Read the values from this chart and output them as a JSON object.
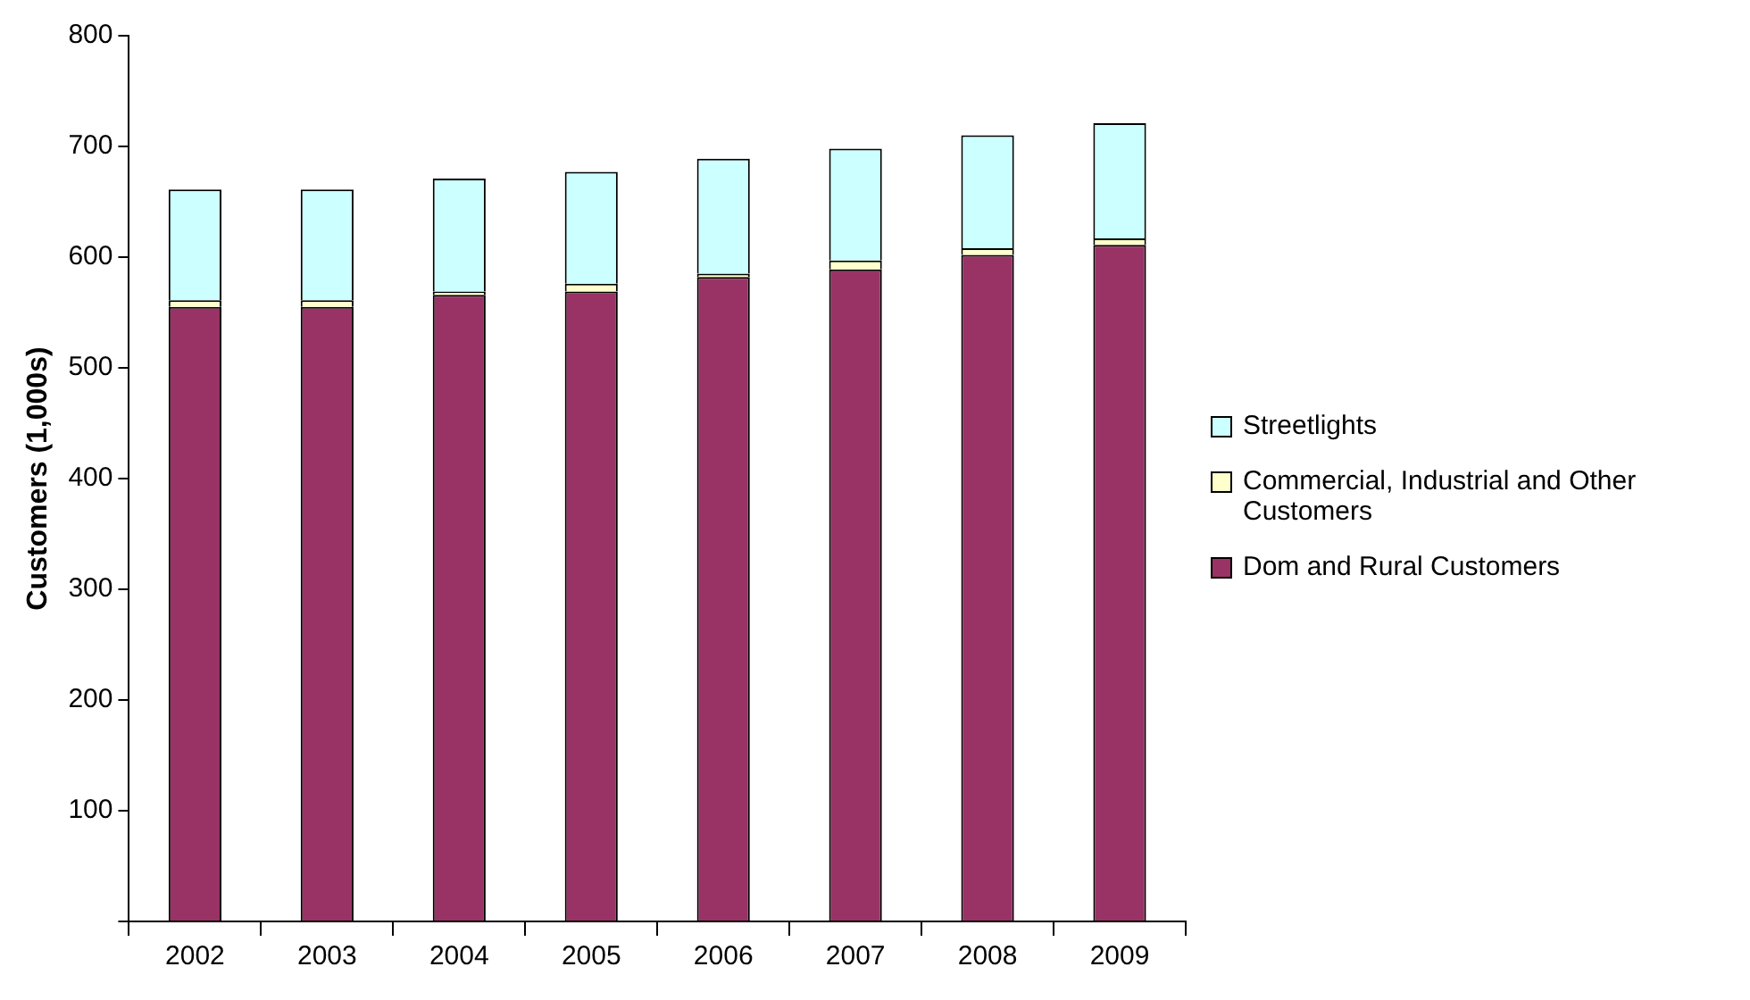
{
  "chart_data": {
    "type": "bar",
    "ylabel": "Customers (1,000s)",
    "categories": [
      "2002",
      "2003",
      "2004",
      "2005",
      "2006",
      "2007",
      "2008",
      "2009"
    ],
    "stacked": true,
    "series": [
      {
        "name": "Dom and Rural Customers",
        "color": "#993366",
        "values": [
          555,
          555,
          566,
          569,
          582,
          589,
          602,
          611
        ]
      },
      {
        "name": "Commercial, Industrial and Other Customers",
        "color": "#ffffcc",
        "values": [
          6,
          6,
          3,
          7,
          3,
          8,
          6,
          6
        ]
      },
      {
        "name": "Streetlights",
        "color": "#ccffff",
        "values": [
          100,
          100,
          102,
          101,
          104,
          101,
          102,
          104
        ]
      }
    ],
    "ylim": [
      0,
      800
    ],
    "yticks": [
      {
        "value": 0,
        "label": null
      },
      100,
      200,
      300,
      400,
      500,
      600,
      700,
      800
    ],
    "grid": false,
    "legend": "right"
  }
}
